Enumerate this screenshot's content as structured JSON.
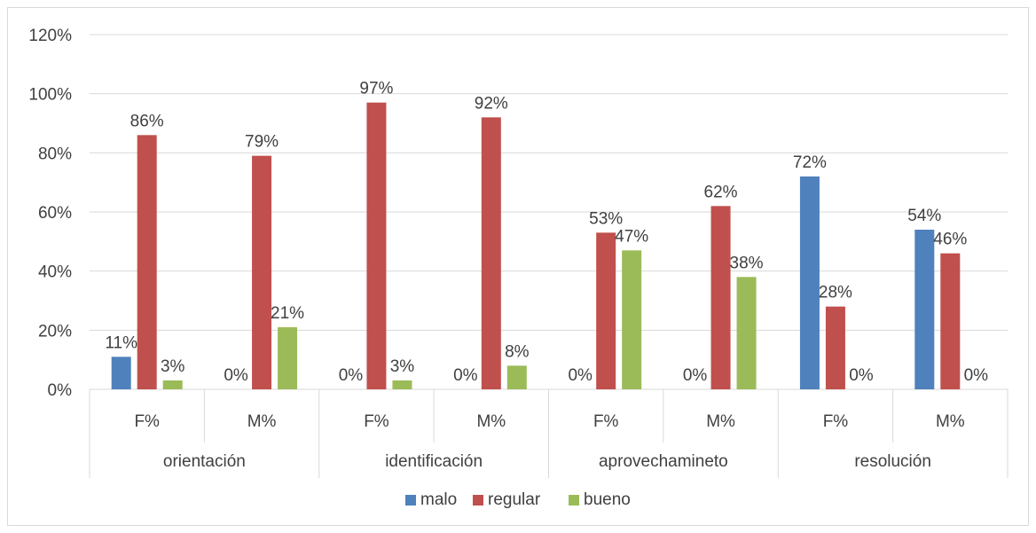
{
  "chart_data": {
    "type": "bar",
    "groups": [
      "orientación",
      "identificación",
      "aprovechamineto",
      "resolución"
    ],
    "categories": [
      "F%",
      "M%",
      "F%",
      "M%",
      "F%",
      "M%",
      "F%",
      "M%"
    ],
    "series": [
      {
        "name": "malo",
        "color": "#4f81bd",
        "values": [
          11,
          0,
          0,
          0,
          0,
          0,
          72,
          54
        ],
        "labels": [
          "11%",
          "0%",
          "0%",
          "0%",
          "0%",
          "0%",
          "72%",
          "54%"
        ]
      },
      {
        "name": "regular",
        "color": "#c0504d",
        "values": [
          86,
          79,
          97,
          92,
          53,
          62,
          28,
          46
        ],
        "labels": [
          "86%",
          "79%",
          "97%",
          "92%",
          "53%",
          "62%",
          "28%",
          "46%"
        ]
      },
      {
        "name": "bueno",
        "color": "#9bbb59",
        "values": [
          3,
          21,
          3,
          8,
          47,
          38,
          0,
          0
        ],
        "labels": [
          "3%",
          "21%",
          "3%",
          "8%",
          "47%",
          "38%",
          "0%",
          "0%"
        ]
      }
    ],
    "y_ticks": [
      "0%",
      "20%",
      "40%",
      "60%",
      "80%",
      "100%",
      "120%"
    ],
    "ylim": [
      0,
      120
    ],
    "grid": true,
    "legend_position": "bottom"
  }
}
